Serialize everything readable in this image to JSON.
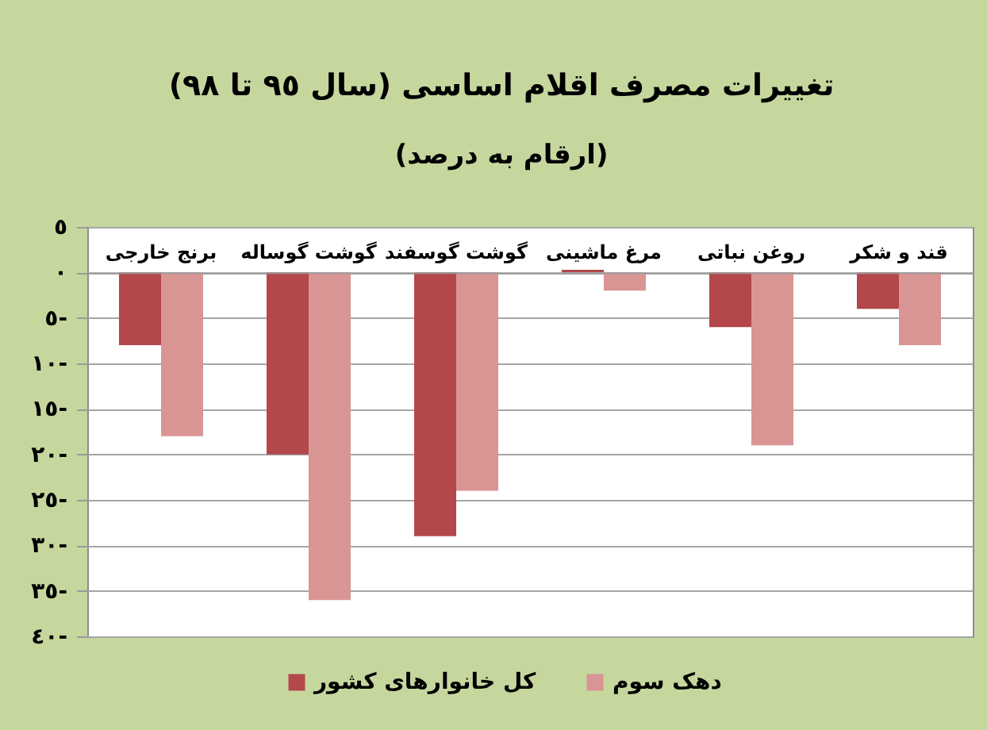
{
  "chart_data": {
    "type": "bar",
    "title": "تغییرات مصرف اقلام اساسی (سال ٩٥ تا ٩٨)",
    "subtitle": "(ارقام به درصد)",
    "categories": [
      "برنج خارجی",
      "گوشت گوساله",
      "گوشت گوسفند",
      "مرغ ماشینی",
      "روغن نباتی",
      "قند و شکر"
    ],
    "series": [
      {
        "name": "کل خانوارهای کشور",
        "color": "#b3474a",
        "values": [
          -8,
          -20,
          -29,
          0.3,
          -6,
          -4
        ]
      },
      {
        "name": "دهک سوم",
        "color": "#d99594",
        "values": [
          -18,
          -36,
          -24,
          -2,
          -19,
          -8
        ]
      }
    ],
    "ylim": [
      -40,
      5
    ],
    "yticks": [
      {
        "value": 5,
        "label": "٥"
      },
      {
        "value": 0,
        "label": "٠"
      },
      {
        "value": -5,
        "label": "٥-"
      },
      {
        "value": -10,
        "label": "١٠-"
      },
      {
        "value": -15,
        "label": "١٥-"
      },
      {
        "value": -20,
        "label": "٢٠-"
      },
      {
        "value": -25,
        "label": "٢٥-"
      },
      {
        "value": -30,
        "label": "٣٠-"
      },
      {
        "value": -35,
        "label": "٣٥-"
      },
      {
        "value": -40,
        "label": "٤٠-"
      }
    ],
    "grid": "y",
    "legend": "bottom"
  }
}
